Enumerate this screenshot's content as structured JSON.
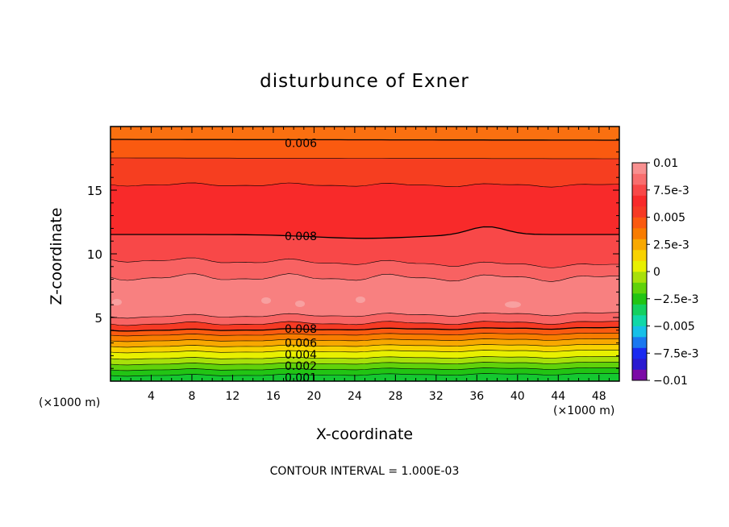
{
  "chart_data": {
    "type": "contour",
    "title": "disturbunce of Exner",
    "xlabel": "X-coordinate",
    "ylabel": "Z-coordinate",
    "x_unit_label": "(×1000 m)",
    "x_unit_label_right": "(×1000 m)",
    "xlim": [
      0,
      50
    ],
    "ylim": [
      0,
      20
    ],
    "x_ticks": [
      4,
      8,
      12,
      16,
      20,
      24,
      28,
      32,
      36,
      40,
      44,
      48
    ],
    "y_ticks": [
      5,
      10,
      15
    ],
    "contour_interval": "CONTOUR INTERVAL = 1.000E-03",
    "contour_labels": [
      {
        "text": "0.006",
        "x": 18.7,
        "z": 18.7
      },
      {
        "text": "0.008",
        "x": 18.7,
        "z": 11.4
      },
      {
        "text": "0.008",
        "x": 18.7,
        "z": 4.1
      },
      {
        "text": "0.006",
        "x": 18.7,
        "z": 3.0
      },
      {
        "text": "0.004",
        "x": 18.7,
        "z": 2.1
      },
      {
        "text": "0.002",
        "x": 18.7,
        "z": 1.2
      },
      {
        "text": "0.001",
        "x": 18.7,
        "z": 0.3
      }
    ],
    "colorbar": {
      "labels": [
        "0.01",
        "7.5e-3",
        "0.005",
        "2.5e-3",
        "0",
        "−2.5e-3",
        "−0.005",
        "−7.5e-3",
        "−0.01"
      ],
      "colors": [
        "#7b0aa6",
        "#2a1ad0",
        "#1a2af0",
        "#1a78f0",
        "#16c0e8",
        "#10d8a8",
        "#14d060",
        "#22c414",
        "#60d20a",
        "#a8e00a",
        "#e8f000",
        "#f8d200",
        "#f8a800",
        "#f87c00",
        "#fa5a10",
        "#f63a24",
        "#f82a2a",
        "#f84848",
        "#f86e6e",
        "#f89090"
      ]
    },
    "bands_legend": "filled contours from 0 at surface to ~0.010 near 7 km, decreasing to ~0.006 at top"
  }
}
